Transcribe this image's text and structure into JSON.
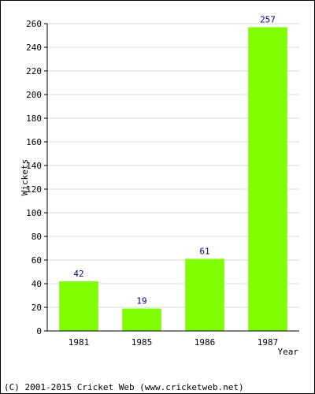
{
  "chart_data": {
    "type": "bar",
    "categories": [
      "1981",
      "1985",
      "1986",
      "1987"
    ],
    "values": [
      42,
      19,
      61,
      257
    ],
    "data_labels": [
      "42",
      "19",
      "61",
      "257"
    ],
    "xlabel": "Year",
    "ylabel": "Wickets",
    "ylim": [
      0,
      260
    ],
    "yticks": [
      0,
      20,
      40,
      60,
      80,
      100,
      120,
      140,
      160,
      180,
      200,
      220,
      240,
      260
    ],
    "grid": true,
    "colors": {
      "bar": "#80ff00",
      "data_label": "#000080",
      "grid": "#d9d9d9",
      "axis": "#000000",
      "text": "#000000"
    }
  },
  "footer": {
    "copyright": "(C) 2001-2015 Cricket Web (www.cricketweb.net)"
  }
}
